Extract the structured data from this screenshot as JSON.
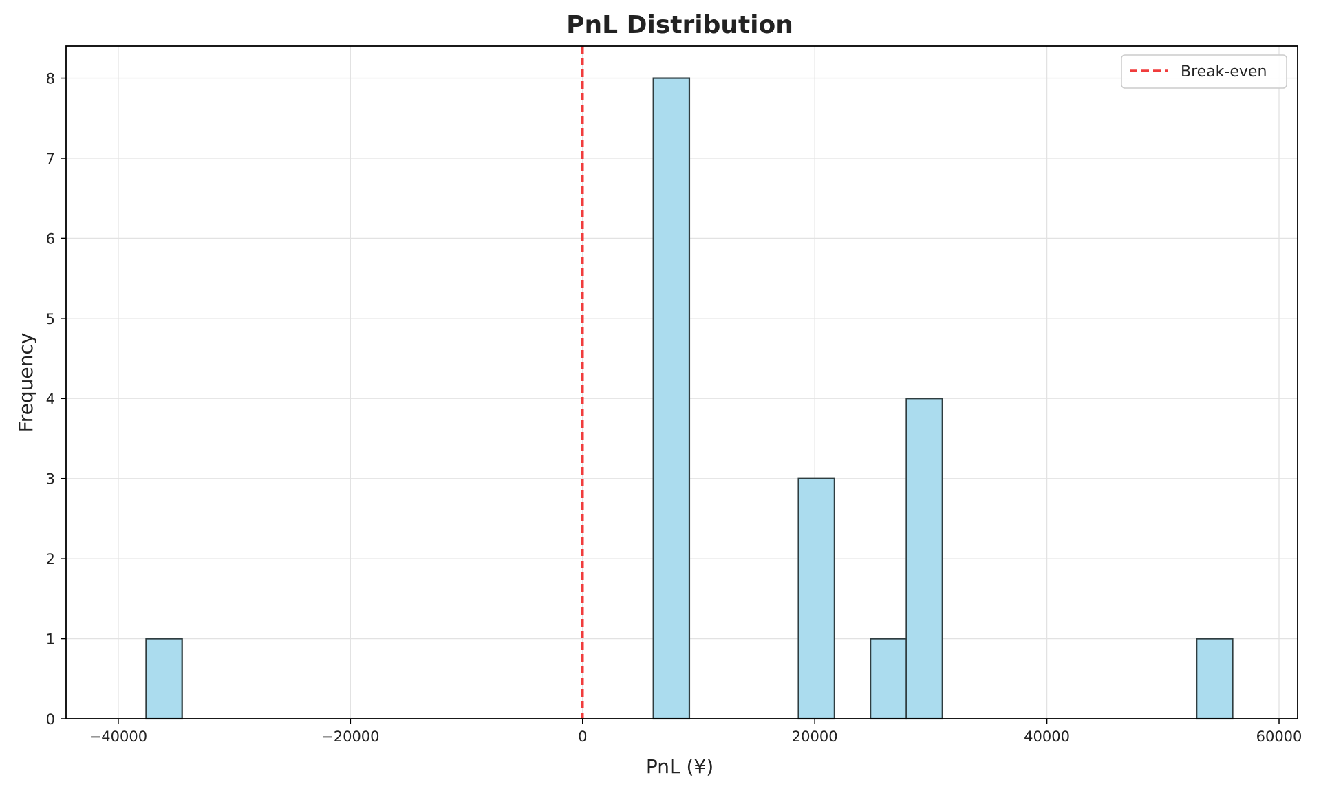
{
  "chart_data": {
    "type": "histogram",
    "title": "PnL Distribution",
    "xlabel": "PnL (¥)",
    "ylabel": "Frequency",
    "xlim": [
      -44500,
      61600
    ],
    "ylim": [
      0,
      8.4
    ],
    "xticks": [
      {
        "value": -40000,
        "label": "−40000"
      },
      {
        "value": -20000,
        "label": "−20000"
      },
      {
        "value": 0,
        "label": "0"
      },
      {
        "value": 20000,
        "label": "20000"
      },
      {
        "value": 40000,
        "label": "40000"
      },
      {
        "value": 60000,
        "label": "60000"
      }
    ],
    "yticks": [
      {
        "value": 0,
        "label": "0"
      },
      {
        "value": 1,
        "label": "1"
      },
      {
        "value": 2,
        "label": "2"
      },
      {
        "value": 3,
        "label": "3"
      },
      {
        "value": 4,
        "label": "4"
      },
      {
        "value": 5,
        "label": "5"
      },
      {
        "value": 6,
        "label": "6"
      },
      {
        "value": 7,
        "label": "7"
      },
      {
        "value": 8,
        "label": "8"
      }
    ],
    "bins": [
      {
        "start": -37600,
        "end": -34500,
        "count": 1
      },
      {
        "start": 6100,
        "end": 9200,
        "count": 8
      },
      {
        "start": 18600,
        "end": 21700,
        "count": 3
      },
      {
        "start": 24800,
        "end": 27900,
        "count": 1
      },
      {
        "start": 27900,
        "end": 31000,
        "count": 4
      },
      {
        "start": 52900,
        "end": 56000,
        "count": 1
      }
    ],
    "reference_line": {
      "x": 0,
      "label": "Break-even",
      "color": "#f03c3c",
      "style": "dashed"
    },
    "grid": true,
    "legend": {
      "position": "top-right",
      "entries": [
        "Break-even"
      ]
    },
    "colors": {
      "bar_fill": "#abdcee",
      "bar_edge": "#2f3d40",
      "grid": "#e2e2e2",
      "axis": "#000000"
    }
  }
}
